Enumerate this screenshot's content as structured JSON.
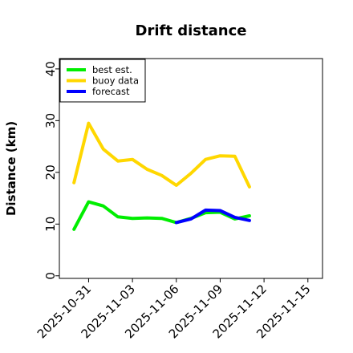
{
  "chart_data": {
    "type": "line",
    "title": "Drift distance",
    "xlabel": "",
    "ylabel": "Distance (km)",
    "ylim": [
      -0.5,
      42
    ],
    "xlim": [
      "2025-10-29",
      "2025-11-16"
    ],
    "x_ticks": [
      {
        "date": "2025-10-31",
        "label": "2025-10-31",
        "color": "#000000"
      },
      {
        "date": "2025-11-03",
        "label": "2025-11-03",
        "color": "#000000"
      },
      {
        "date": "2025-11-06",
        "label": "2025-11-06",
        "color": "#2e8b22"
      },
      {
        "date": "2025-11-09",
        "label": "2025-11-09",
        "color": "#000000"
      },
      {
        "date": "2025-11-12",
        "label": "2025-11-12",
        "color": "#000000"
      },
      {
        "date": "2025-11-15",
        "label": "2025-11-15",
        "color": "#000000"
      }
    ],
    "y_ticks": [
      0,
      10,
      20,
      30,
      40
    ],
    "grid": false,
    "legend": "top-left",
    "series": [
      {
        "name": "best est.",
        "color": "#00ee00",
        "x": [
          "2025-10-30",
          "2025-10-31",
          "2025-11-01",
          "2025-11-02",
          "2025-11-03",
          "2025-11-04",
          "2025-11-05",
          "2025-11-06",
          "2025-11-07",
          "2025-11-08",
          "2025-11-09",
          "2025-11-10",
          "2025-11-11"
        ],
        "values": [
          9,
          14.3,
          13.5,
          11.4,
          11.1,
          11.2,
          11.1,
          10.3,
          11.1,
          12.2,
          12.3,
          11.0,
          11.6
        ]
      },
      {
        "name": "buoy data",
        "color": "#ffd700",
        "x": [
          "2025-10-30",
          "2025-10-31",
          "2025-11-01",
          "2025-11-02",
          "2025-11-03",
          "2025-11-04",
          "2025-11-05",
          "2025-11-06",
          "2025-11-07",
          "2025-11-08",
          "2025-11-09",
          "2025-11-10",
          "2025-11-11"
        ],
        "values": [
          18,
          29.5,
          24.5,
          22.2,
          22.5,
          20.6,
          19.4,
          17.5,
          19.8,
          22.5,
          23.2,
          23.1,
          17.2
        ]
      },
      {
        "name": "forecast",
        "color": "#0000ff",
        "x": [
          "2025-11-06",
          "2025-11-07",
          "2025-11-08",
          "2025-11-09",
          "2025-11-10",
          "2025-11-11"
        ],
        "values": [
          10.3,
          11.0,
          12.7,
          12.6,
          11.3,
          10.7
        ]
      }
    ]
  }
}
